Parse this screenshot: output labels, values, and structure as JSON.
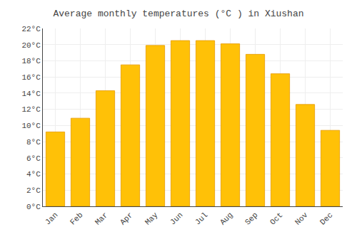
{
  "chart_data": {
    "type": "bar",
    "title": "Average monthly temperatures (°C ) in Xiushan",
    "categories": [
      "Jan",
      "Feb",
      "Mar",
      "Apr",
      "May",
      "Jun",
      "Jul",
      "Aug",
      "Sep",
      "Oct",
      "Nov",
      "Dec"
    ],
    "values": [
      9.2,
      10.9,
      14.3,
      17.5,
      19.9,
      20.5,
      20.5,
      20.1,
      18.8,
      16.4,
      12.6,
      9.4
    ],
    "color": "#FFC107",
    "ylim": [
      0,
      22
    ],
    "yticks": [
      {
        "value": 0,
        "label": "0°C"
      },
      {
        "value": 2,
        "label": "2°C"
      },
      {
        "value": 4,
        "label": "4°C"
      },
      {
        "value": 6,
        "label": "6°C"
      },
      {
        "value": 8,
        "label": "8°C"
      },
      {
        "value": 10,
        "label": "10°C"
      },
      {
        "value": 12,
        "label": "12°C"
      },
      {
        "value": 14,
        "label": "14°C"
      },
      {
        "value": 16,
        "label": "16°C"
      },
      {
        "value": 18,
        "label": "18°C"
      },
      {
        "value": 20,
        "label": "20°C"
      },
      {
        "value": 22,
        "label": "22°C"
      }
    ],
    "grid": true
  }
}
